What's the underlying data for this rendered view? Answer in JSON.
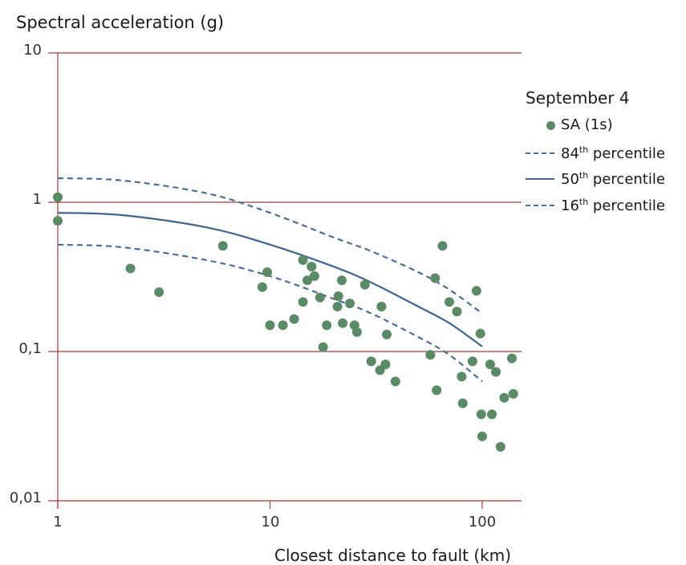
{
  "chart_data": {
    "type": "scatter",
    "ylabel": "Spectral acceleration (g)",
    "xlabel": "Closest distance to fault (km)",
    "xscale": "log",
    "yscale": "log",
    "xlim": [
      1,
      150
    ],
    "ylim": [
      0.01,
      10
    ],
    "y_ticks": [
      "10",
      "1",
      "0,1",
      "0,01"
    ],
    "x_ticks": [
      "1",
      "10",
      "100"
    ],
    "grid": "horizontal",
    "legend": {
      "title": "September 4",
      "placement": "right",
      "items": [
        {
          "marker": "dot",
          "label": "SA (1s)"
        },
        {
          "marker": "dash",
          "label_main": "84",
          "label_sup": "th",
          "label_rest": " percentile"
        },
        {
          "marker": "solid",
          "label_main": "50",
          "label_sup": "th",
          "label_rest": " percentile"
        },
        {
          "marker": "dash",
          "label_main": "16",
          "label_sup": "th",
          "label_rest": " percentile"
        }
      ]
    },
    "series": [
      {
        "name": "SA (1s)",
        "kind": "scatter",
        "color": "#5a8a66",
        "points": [
          [
            1.0,
            1.08
          ],
          [
            1.0,
            0.75
          ],
          [
            2.2,
            0.36
          ],
          [
            3.0,
            0.25
          ],
          [
            6.0,
            0.51
          ],
          [
            9.2,
            0.27
          ],
          [
            9.7,
            0.34
          ],
          [
            10.0,
            0.15
          ],
          [
            11.5,
            0.15
          ],
          [
            13.0,
            0.165
          ],
          [
            14.3,
            0.41
          ],
          [
            14.3,
            0.215
          ],
          [
            15.0,
            0.3
          ],
          [
            15.7,
            0.37
          ],
          [
            16.2,
            0.32
          ],
          [
            17.2,
            0.23
          ],
          [
            17.8,
            0.107
          ],
          [
            18.5,
            0.15
          ],
          [
            20.8,
            0.2
          ],
          [
            21.0,
            0.235
          ],
          [
            21.8,
            0.3
          ],
          [
            22.0,
            0.155
          ],
          [
            23.8,
            0.21
          ],
          [
            25.0,
            0.15
          ],
          [
            25.7,
            0.135
          ],
          [
            28.0,
            0.28
          ],
          [
            30.0,
            0.086
          ],
          [
            33.0,
            0.075
          ],
          [
            33.5,
            0.2
          ],
          [
            35.0,
            0.082
          ],
          [
            35.5,
            0.13
          ],
          [
            39.0,
            0.063
          ],
          [
            57.0,
            0.095
          ],
          [
            60.0,
            0.31
          ],
          [
            61.0,
            0.055
          ],
          [
            65.0,
            0.51
          ],
          [
            70.0,
            0.215
          ],
          [
            76.0,
            0.185
          ],
          [
            80.0,
            0.068
          ],
          [
            81.0,
            0.045
          ],
          [
            90.0,
            0.086
          ],
          [
            94.0,
            0.255
          ],
          [
            98.0,
            0.132
          ],
          [
            99.0,
            0.038
          ],
          [
            100.0,
            0.027
          ],
          [
            109.0,
            0.082
          ],
          [
            111.0,
            0.038
          ],
          [
            116.0,
            0.073
          ],
          [
            122.0,
            0.023
          ],
          [
            127.0,
            0.049
          ],
          [
            138.0,
            0.09
          ],
          [
            140.0,
            0.052
          ]
        ]
      },
      {
        "name": "84th percentile",
        "kind": "line",
        "style": "dashed",
        "color": "#4a6f97",
        "points": [
          [
            1,
            1.45
          ],
          [
            2,
            1.4
          ],
          [
            5,
            1.15
          ],
          [
            10,
            0.85
          ],
          [
            20,
            0.58
          ],
          [
            30,
            0.47
          ],
          [
            50,
            0.34
          ],
          [
            70,
            0.26
          ],
          [
            100,
            0.18
          ]
        ]
      },
      {
        "name": "50th percentile",
        "kind": "line",
        "style": "solid",
        "color": "#3f6590",
        "points": [
          [
            1,
            0.85
          ],
          [
            2,
            0.82
          ],
          [
            5,
            0.68
          ],
          [
            10,
            0.52
          ],
          [
            20,
            0.37
          ],
          [
            30,
            0.29
          ],
          [
            50,
            0.2
          ],
          [
            70,
            0.155
          ],
          [
            100,
            0.108
          ]
        ]
      },
      {
        "name": "16th percentile",
        "kind": "line",
        "style": "dashed",
        "color": "#4a6f97",
        "points": [
          [
            1,
            0.52
          ],
          [
            2,
            0.5
          ],
          [
            5,
            0.41
          ],
          [
            10,
            0.32
          ],
          [
            20,
            0.225
          ],
          [
            30,
            0.18
          ],
          [
            50,
            0.125
          ],
          [
            70,
            0.095
          ],
          [
            100,
            0.063
          ]
        ]
      }
    ],
    "colors": {
      "grid": "#a83a3a",
      "axis": "#a83a3a"
    }
  }
}
